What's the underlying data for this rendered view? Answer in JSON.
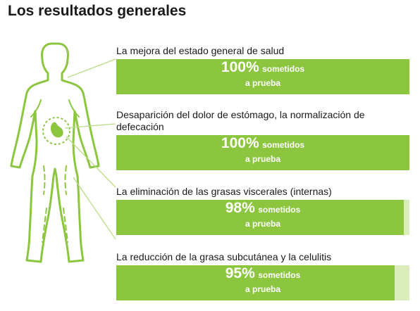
{
  "title": "Los resultados generales",
  "colors": {
    "bar_fill": "#8cc63f",
    "bar_track": "#d9ecb9",
    "outline": "#8cc63f"
  },
  "results": [
    {
      "label": "La mejora del estado general de salud",
      "percent_text": "100%",
      "value": 100,
      "caption_1": "sometidos",
      "caption_2": "a prueba"
    },
    {
      "label": "Desaparición del dolor de estómago, la normalización de defecación",
      "percent_text": "100%",
      "value": 100,
      "caption_1": "sometidos",
      "caption_2": "a prueba"
    },
    {
      "label": "La eliminación de las grasas viscerales (internas)",
      "percent_text": "98%",
      "value": 98,
      "caption_1": "sometidos",
      "caption_2": "a prueba"
    },
    {
      "label": "La reducción de la grasa subcutánea y la celulitis",
      "percent_text": "95%",
      "value": 95,
      "caption_1": "sometidos",
      "caption_2": "a prueba"
    }
  ],
  "illustration": {
    "icon": "human-body-outline-icon",
    "highlight": "stomach-icon"
  }
}
